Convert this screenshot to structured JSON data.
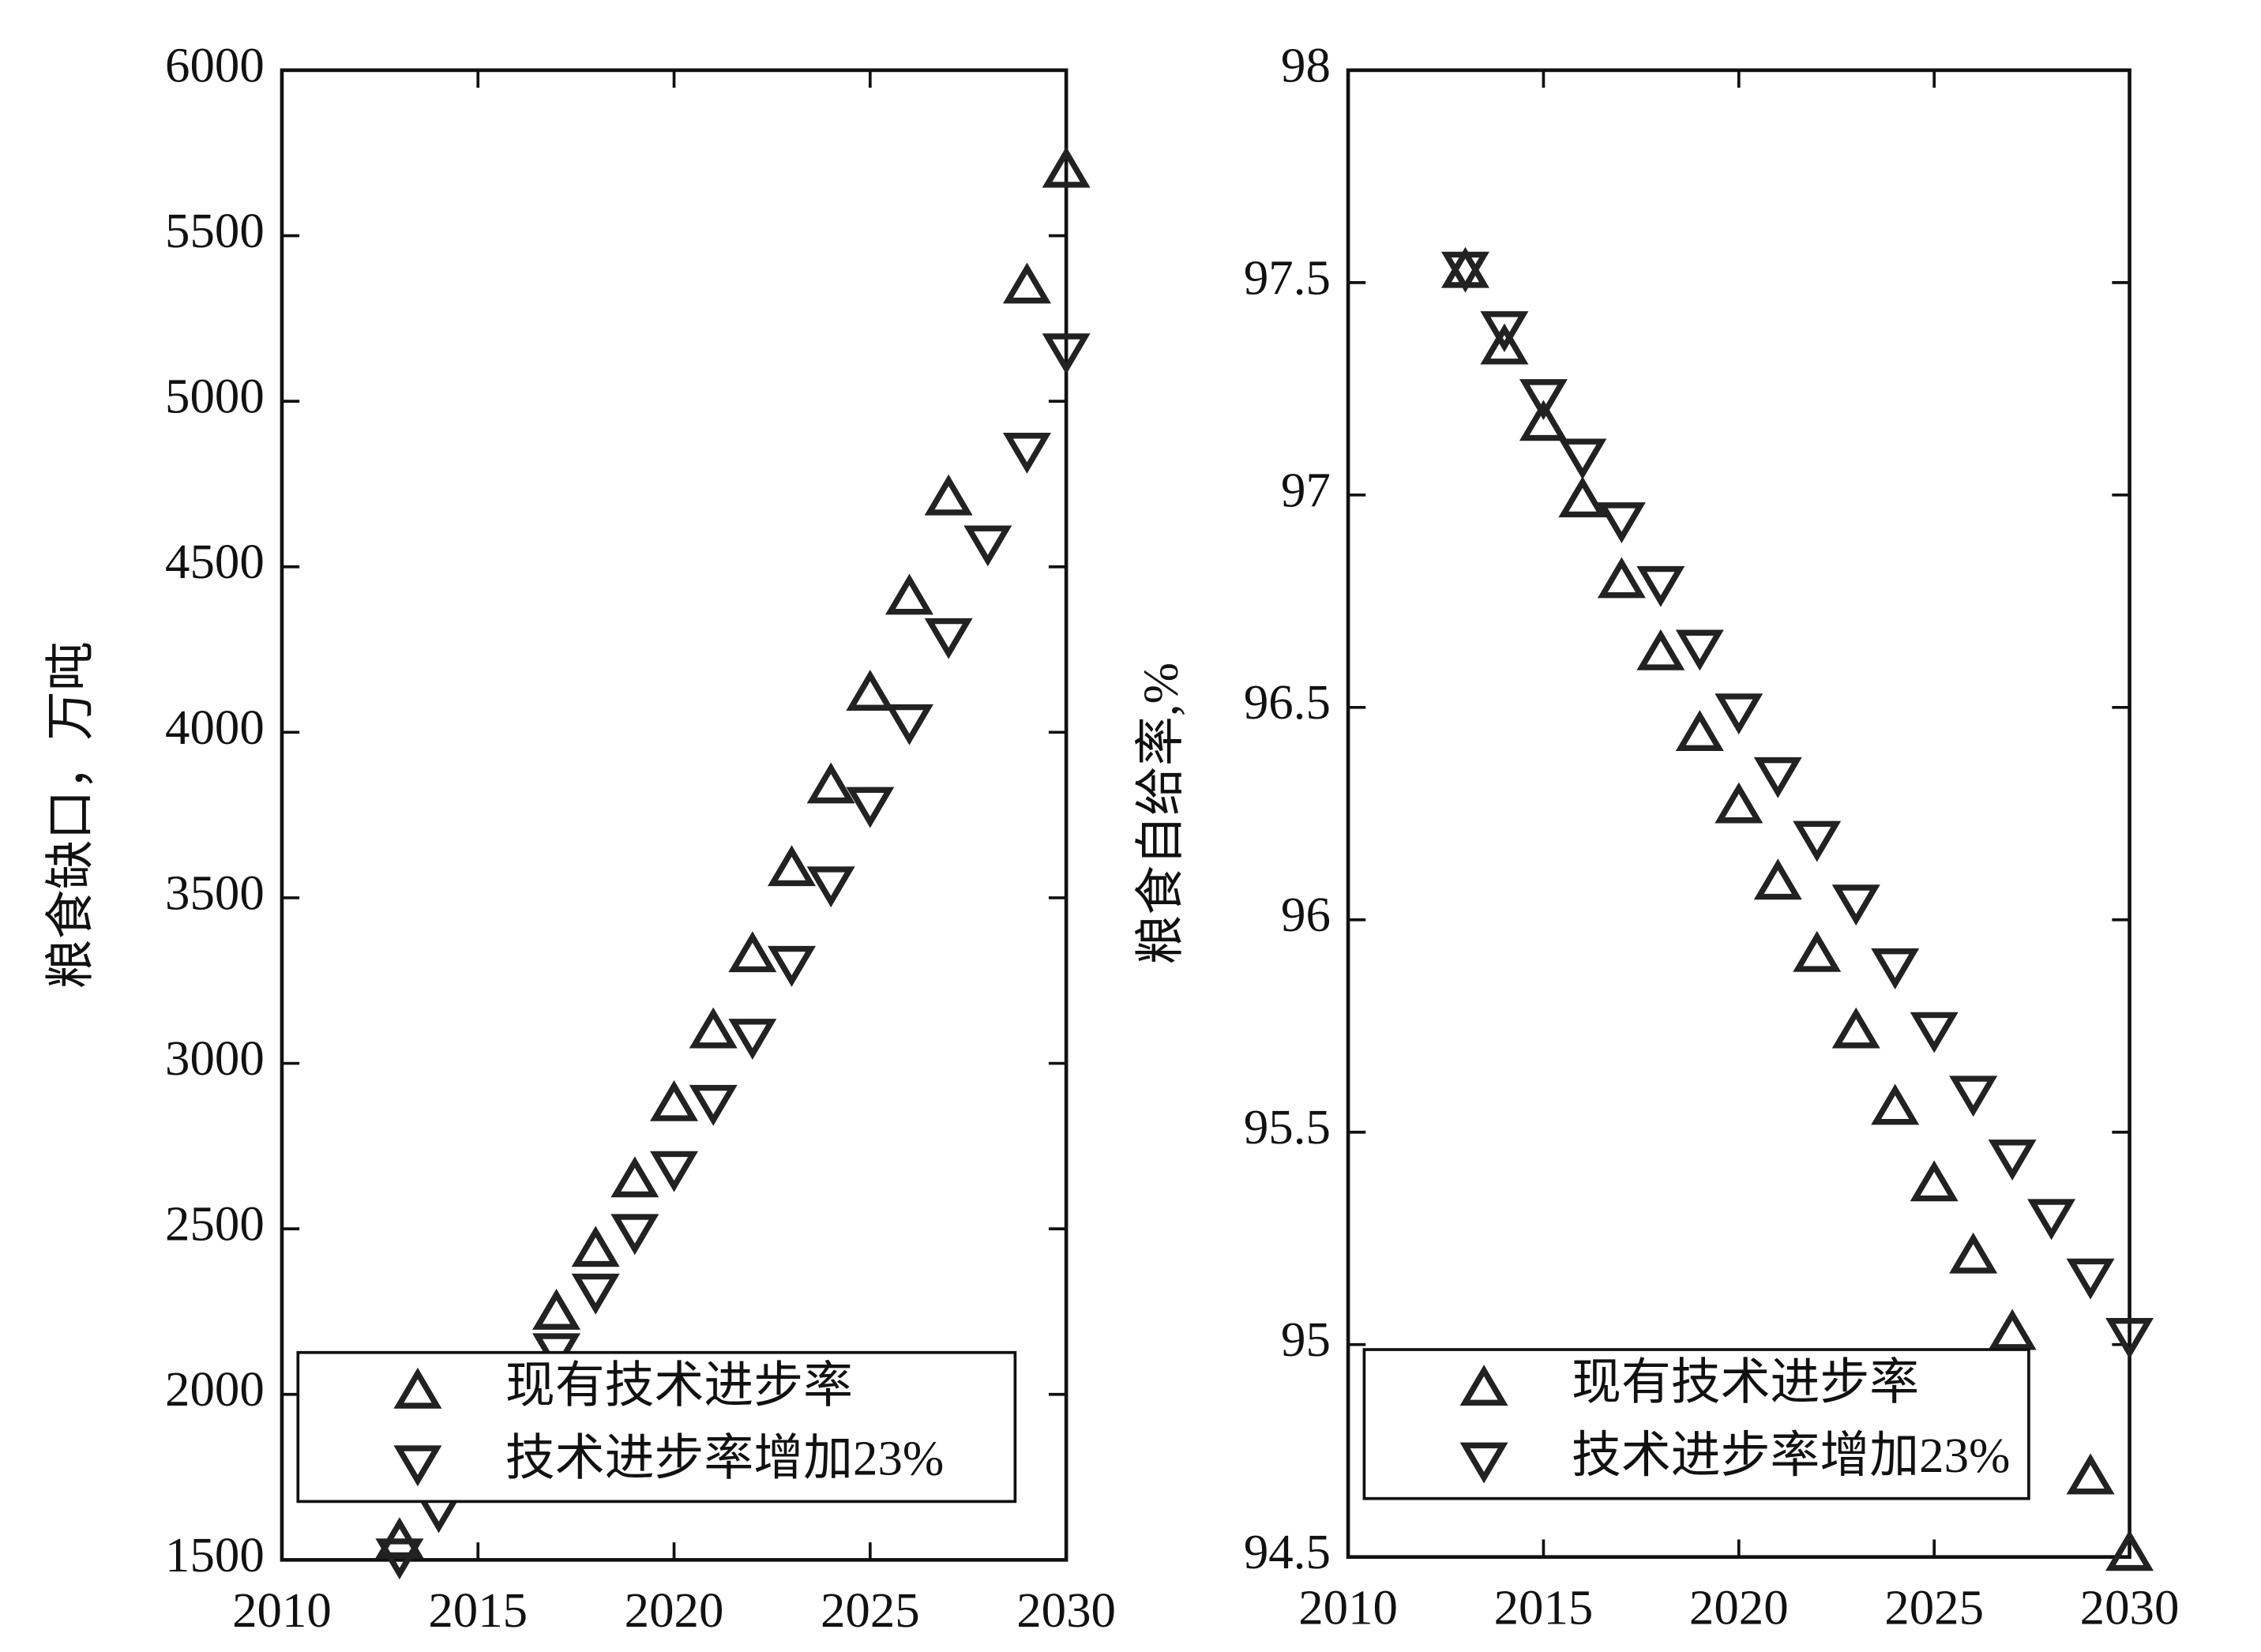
{
  "chart_data": [
    {
      "type": "scatter",
      "ylabel": "粮食缺口，万吨",
      "xlim": [
        2010,
        2030
      ],
      "xticks": [
        2010,
        2015,
        2020,
        2025,
        2030
      ],
      "ylim": [
        1500,
        6000
      ],
      "yticks": [
        1500,
        2000,
        2500,
        3000,
        3500,
        4000,
        4500,
        5000,
        5500,
        6000
      ],
      "legend": "lower left",
      "series": [
        {
          "name": "现有技术进步率",
          "color": "#222222",
          "marker": "triangle-up",
          "x": [
            2013,
            2017,
            2018,
            2019,
            2020,
            2021,
            2022,
            2023,
            2024,
            2025,
            2026,
            2027,
            2029,
            2030
          ],
          "values": [
            1560,
            2250,
            2440,
            2650,
            2880,
            3100,
            3330,
            3590,
            3840,
            4120,
            4410,
            4710,
            5350,
            5700
          ]
        },
        {
          "name": "技术进步率增加23%",
          "color": "#222222",
          "marker": "triangle-down",
          "x": [
            2013,
            2014,
            2017,
            2018,
            2019,
            2020,
            2021,
            2022,
            2023,
            2024,
            2025,
            2026,
            2027,
            2028,
            2029,
            2030
          ],
          "values": [
            1510,
            1650,
            2130,
            2310,
            2490,
            2680,
            2880,
            3080,
            3300,
            3540,
            3780,
            4030,
            4290,
            4570,
            4850,
            5150
          ]
        }
      ]
    },
    {
      "type": "scatter",
      "ylabel": "粮食自给率,%",
      "xlim": [
        2010,
        2030
      ],
      "xticks": [
        2010,
        2015,
        2020,
        2025,
        2030
      ],
      "ylim": [
        94.5,
        98
      ],
      "yticks": [
        94.5,
        95,
        95.5,
        96,
        96.5,
        97,
        97.5,
        98
      ],
      "legend": "lower left",
      "series": [
        {
          "name": "现有技术进步率",
          "color": "#222222",
          "marker": "triangle-up",
          "x": [
            2013,
            2014,
            2015,
            2016,
            2017,
            2018,
            2019,
            2020,
            2021,
            2022,
            2023,
            2024,
            2025,
            2026,
            2027,
            2029,
            2030
          ],
          "values": [
            97.53,
            97.35,
            97.17,
            96.99,
            96.8,
            96.63,
            96.44,
            96.27,
            96.09,
            95.92,
            95.74,
            95.56,
            95.38,
            95.21,
            95.03,
            94.69,
            94.51
          ]
        },
        {
          "name": "技术进步率增加23%",
          "color": "#222222",
          "marker": "triangle-down",
          "x": [
            2013,
            2014,
            2015,
            2016,
            2017,
            2018,
            2019,
            2020,
            2021,
            2022,
            2023,
            2024,
            2025,
            2026,
            2027,
            2028,
            2029,
            2030
          ],
          "values": [
            97.53,
            97.39,
            97.23,
            97.09,
            96.94,
            96.79,
            96.64,
            96.49,
            96.34,
            96.19,
            96.04,
            95.89,
            95.74,
            95.59,
            95.44,
            95.3,
            95.16,
            95.02
          ]
        }
      ]
    }
  ]
}
